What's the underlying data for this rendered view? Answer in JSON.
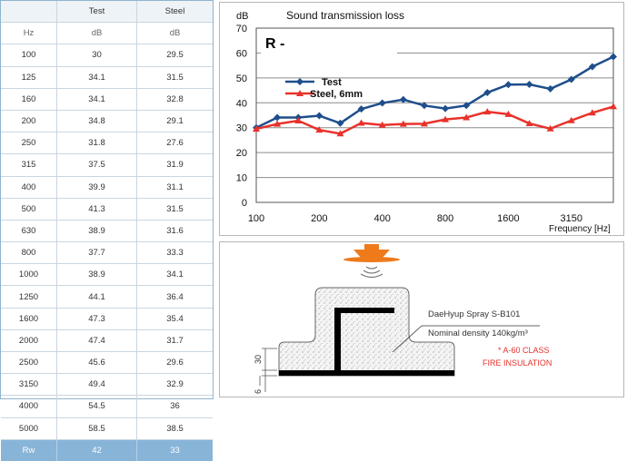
{
  "table": {
    "headers": [
      "",
      "Test",
      "Steel"
    ],
    "units": [
      "Hz",
      "dB",
      "dB"
    ],
    "rows": [
      [
        "100",
        "30",
        "29.5"
      ],
      [
        "125",
        "34.1",
        "31.5"
      ],
      [
        "160",
        "34.1",
        "32.8"
      ],
      [
        "200",
        "34.8",
        "29.1"
      ],
      [
        "250",
        "31.8",
        "27.6"
      ],
      [
        "315",
        "37.5",
        "31.9"
      ],
      [
        "400",
        "39.9",
        "31.1"
      ],
      [
        "500",
        "41.3",
        "31.5"
      ],
      [
        "630",
        "38.9",
        "31.6"
      ],
      [
        "800",
        "37.7",
        "33.3"
      ],
      [
        "1000",
        "38.9",
        "34.1"
      ],
      [
        "1250",
        "44.1",
        "36.4"
      ],
      [
        "1600",
        "47.3",
        "35.4"
      ],
      [
        "2000",
        "47.4",
        "31.7"
      ],
      [
        "2500",
        "45.6",
        "29.6"
      ],
      [
        "3150",
        "49.4",
        "32.9"
      ],
      [
        "4000",
        "54.5",
        "36"
      ],
      [
        "5000",
        "58.5",
        "38.5"
      ]
    ],
    "footer": [
      "Rw",
      "42",
      "33"
    ]
  },
  "chart_data": {
    "type": "line",
    "title": "Sound transmission loss",
    "ylabel": "dB",
    "xlabel": "Frequency [Hz]",
    "annotation": "R -",
    "ylim": [
      0,
      70
    ],
    "yticks": [
      0,
      10,
      20,
      30,
      40,
      50,
      60,
      70
    ],
    "x": [
      100,
      125,
      160,
      200,
      250,
      315,
      400,
      500,
      630,
      800,
      1000,
      1250,
      1600,
      2000,
      2500,
      3150,
      4000,
      5000
    ],
    "xtick_labels": [
      "100",
      "200",
      "400",
      "800",
      "1600",
      "3150"
    ],
    "grid": true,
    "legend_position": "top-left",
    "series": [
      {
        "name": "Test",
        "color": "#1f4e8c",
        "marker": "diamond",
        "values": [
          30,
          34.1,
          34.1,
          34.8,
          31.8,
          37.5,
          39.9,
          41.3,
          38.9,
          37.7,
          38.9,
          44.1,
          47.3,
          47.4,
          45.6,
          49.4,
          54.5,
          58.5
        ]
      },
      {
        "name": "Steel, 6mm",
        "color": "#e8322b",
        "marker": "triangle",
        "values": [
          29.5,
          31.5,
          32.8,
          29.1,
          27.6,
          31.9,
          31.1,
          31.5,
          31.6,
          33.3,
          34.1,
          36.4,
          35.4,
          31.7,
          29.6,
          32.9,
          36,
          38.5
        ]
      }
    ]
  },
  "diagram": {
    "product_label": "DaeHyup Spray S-B101",
    "density_label": "Nominal density 140kg/m³",
    "class_label": "* A-60 CLASS",
    "insulation_label": "FIRE INSULATION",
    "dim_top": "30",
    "dim_bottom": "6",
    "colors": {
      "speaker": "#ee7a1c",
      "text_red": "#e8322b"
    }
  }
}
